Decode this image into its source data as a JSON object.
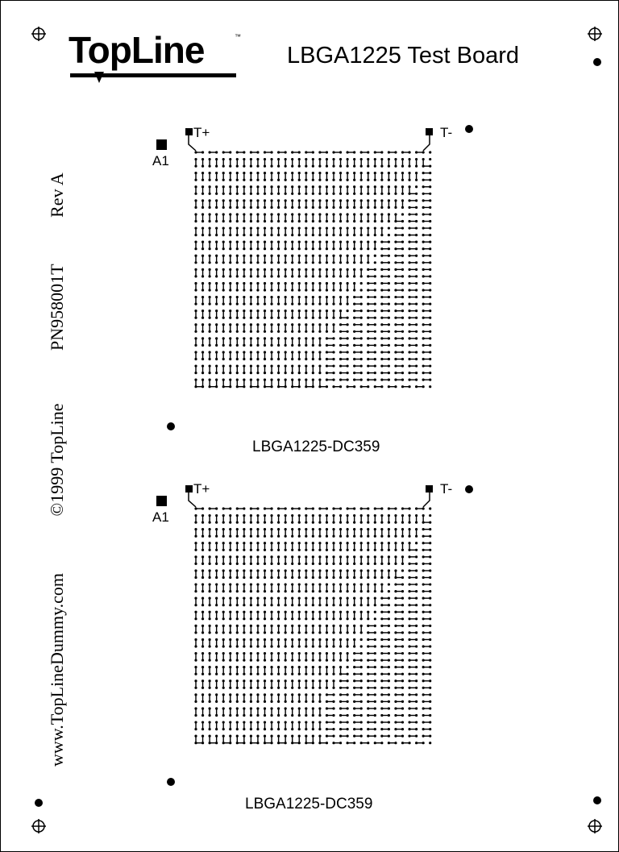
{
  "header": {
    "logo_text": "TopLine",
    "trademark": "™",
    "title": "LBGA1225 Test Board"
  },
  "side_text": {
    "url": "www.TopLineDummy.com",
    "copyright": "©1999 TopLine",
    "part_number": "PN958001T",
    "revision": "Rev A"
  },
  "dies": [
    {
      "name": "LBGA1225-DC359",
      "a1_label": "A1",
      "t_plus": "T+",
      "t_minus": "T-"
    },
    {
      "name": "LBGA1225-DC359",
      "a1_label": "A1",
      "t_plus": "T+",
      "t_minus": "T-"
    }
  ],
  "icons": {
    "corner_marks": "registration-target-icon",
    "fiducials": "fiducial-dot-icon"
  },
  "colors": {
    "ink": "#000000",
    "board": "#ffffff"
  }
}
